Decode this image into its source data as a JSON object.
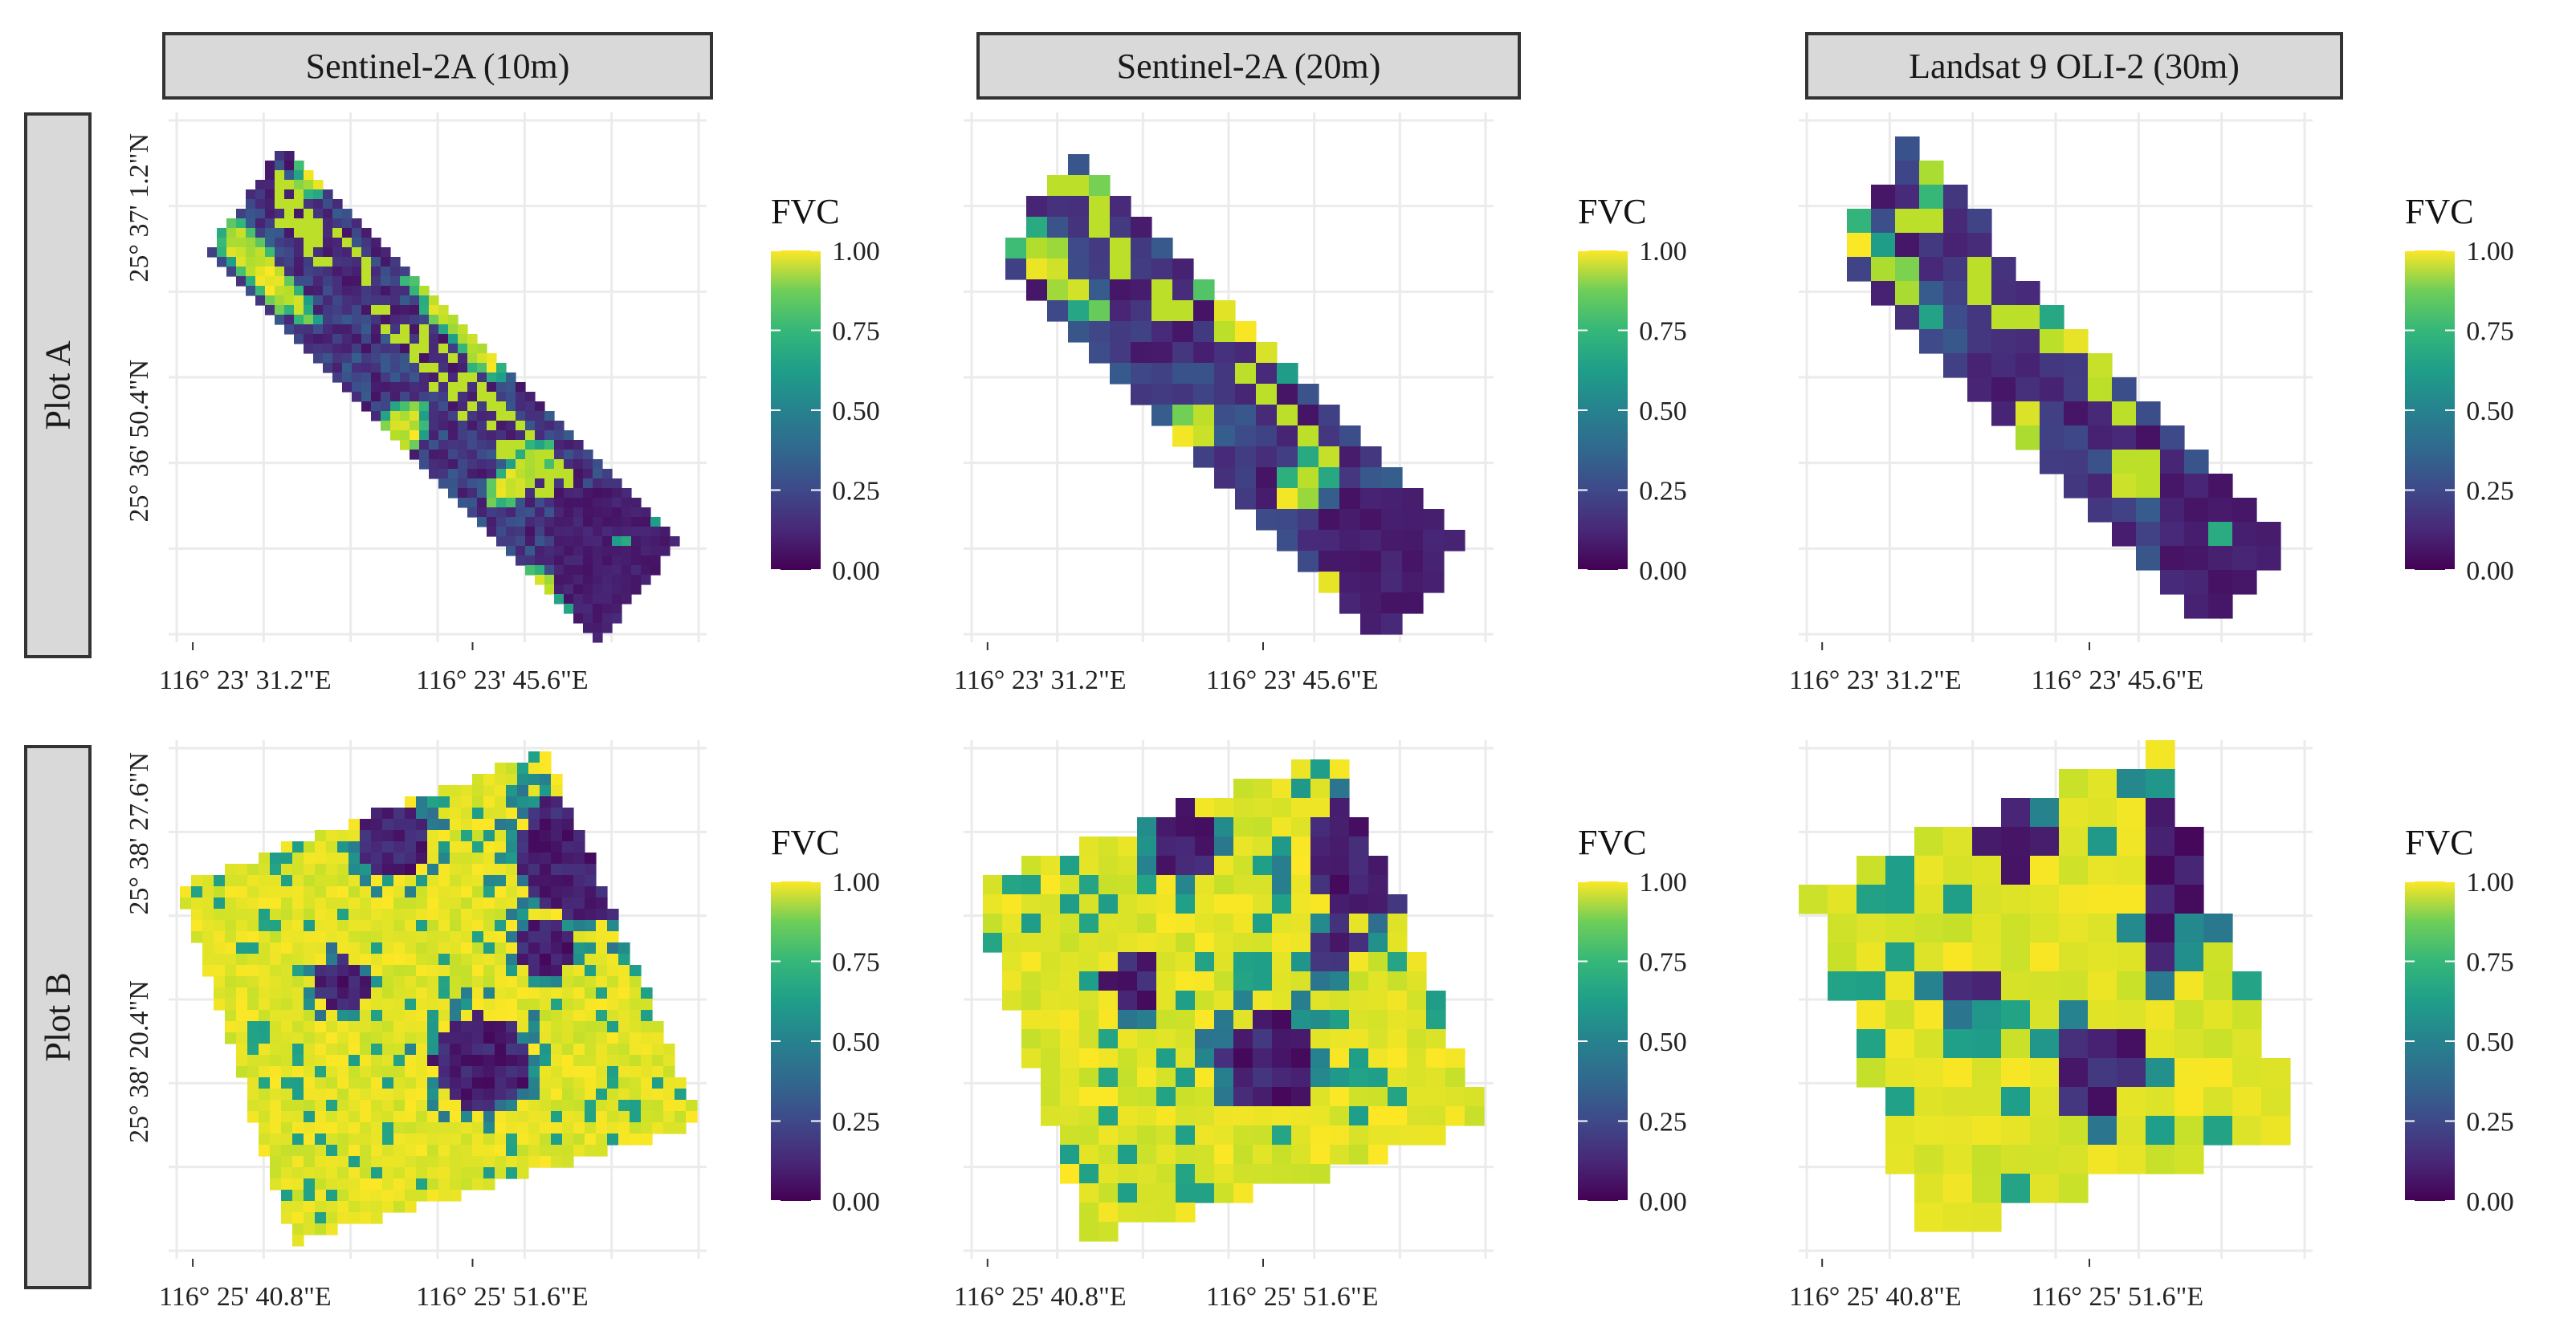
{
  "columns": [
    "Sentinel-2A (10m)",
    "Sentinel-2A (20m)",
    "Landsat 9 OLI-2 (30m)"
  ],
  "rows": [
    "Plot A",
    "Plot B"
  ],
  "chart_data": {
    "type": "heatmap",
    "colormap": "viridis",
    "legend": {
      "title": "FVC",
      "ticks": [
        "1.00",
        "0.75",
        "0.50",
        "0.25",
        "0.00"
      ],
      "range": [
        0,
        1
      ]
    },
    "panels": [
      {
        "row": "Plot A",
        "column": "Sentinel-2A (10m)",
        "resolution_m": 10,
        "x_ticks": [
          "116° 23' 31.2\"E",
          "116° 23' 45.6\"E"
        ],
        "y_ticks": [
          "25° 37' 1.2\"N",
          "25° 36' 50.4\"N"
        ],
        "dominant_fvc": "low (0.00–0.25) with scattered high-value vegetation strips"
      },
      {
        "row": "Plot A",
        "column": "Sentinel-2A (20m)",
        "resolution_m": 20,
        "x_ticks": [
          "116° 23' 31.2\"E",
          "116° 23' 45.6\"E"
        ],
        "y_ticks": [
          "25° 37' 1.2\"N",
          "25° 36' 50.4\"N"
        ],
        "dominant_fvc": "low with moderate patches"
      },
      {
        "row": "Plot A",
        "column": "Landsat 9 OLI-2 (30m)",
        "resolution_m": 30,
        "x_ticks": [
          "116° 23' 31.2\"E",
          "116° 23' 45.6\"E"
        ],
        "y_ticks": [
          "25° 37' 1.2\"N",
          "25° 36' 50.4\"N"
        ],
        "dominant_fvc": "low to moderate"
      },
      {
        "row": "Plot B",
        "column": "Sentinel-2A (10m)",
        "resolution_m": 10,
        "x_ticks": [
          "116° 25' 40.8\"E",
          "116° 25' 51.6\"E"
        ],
        "y_ticks": [
          "25° 38' 27.6\"N",
          "25° 38' 20.4\"N"
        ],
        "dominant_fvc": "high (0.85–1.00) with dark low-value patches"
      },
      {
        "row": "Plot B",
        "column": "Sentinel-2A (20m)",
        "resolution_m": 20,
        "x_ticks": [
          "116° 25' 40.8\"E",
          "116° 25' 51.6\"E"
        ],
        "y_ticks": [
          "25° 38' 27.6\"N",
          "25° 38' 20.4\"N"
        ],
        "dominant_fvc": "high with low-value patches"
      },
      {
        "row": "Plot B",
        "column": "Landsat 9 OLI-2 (30m)",
        "resolution_m": 30,
        "x_ticks": [
          "116° 25' 40.8\"E",
          "116° 25' 51.6\"E"
        ],
        "y_ticks": [
          "25° 38' 27.6\"N",
          "25° 38' 20.4\"N"
        ],
        "dominant_fvc": "high to moderate"
      }
    ]
  }
}
